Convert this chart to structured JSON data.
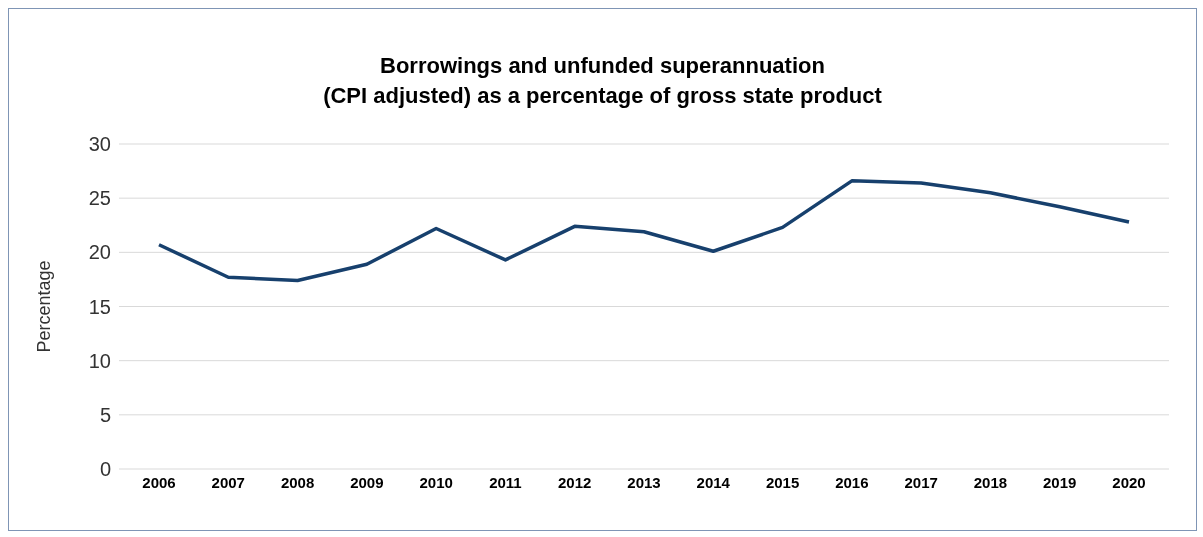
{
  "chart_data": {
    "type": "line",
    "title": "Borrowings and unfunded superannuation\n(CPI adjusted) as a percentage of gross state product",
    "ylabel": "Percentage",
    "categories": [
      "2006",
      "2007",
      "2008",
      "2009",
      "2010",
      "2011",
      "2012",
      "2013",
      "2014",
      "2015",
      "2016",
      "2017",
      "2018",
      "2019",
      "2020"
    ],
    "series": [
      {
        "color": "#17406d",
        "values": [
          20.7,
          17.7,
          17.4,
          18.9,
          22.2,
          19.3,
          22.4,
          21.9,
          20.1,
          22.3,
          26.6,
          26.4,
          25.5,
          24.2,
          22.8
        ]
      }
    ],
    "ylim": [
      0,
      30
    ],
    "yticks": [
      0,
      5,
      10,
      15,
      20,
      25,
      30
    ],
    "grid": "y",
    "legend": false,
    "marker": "none",
    "line_style": "solid"
  }
}
